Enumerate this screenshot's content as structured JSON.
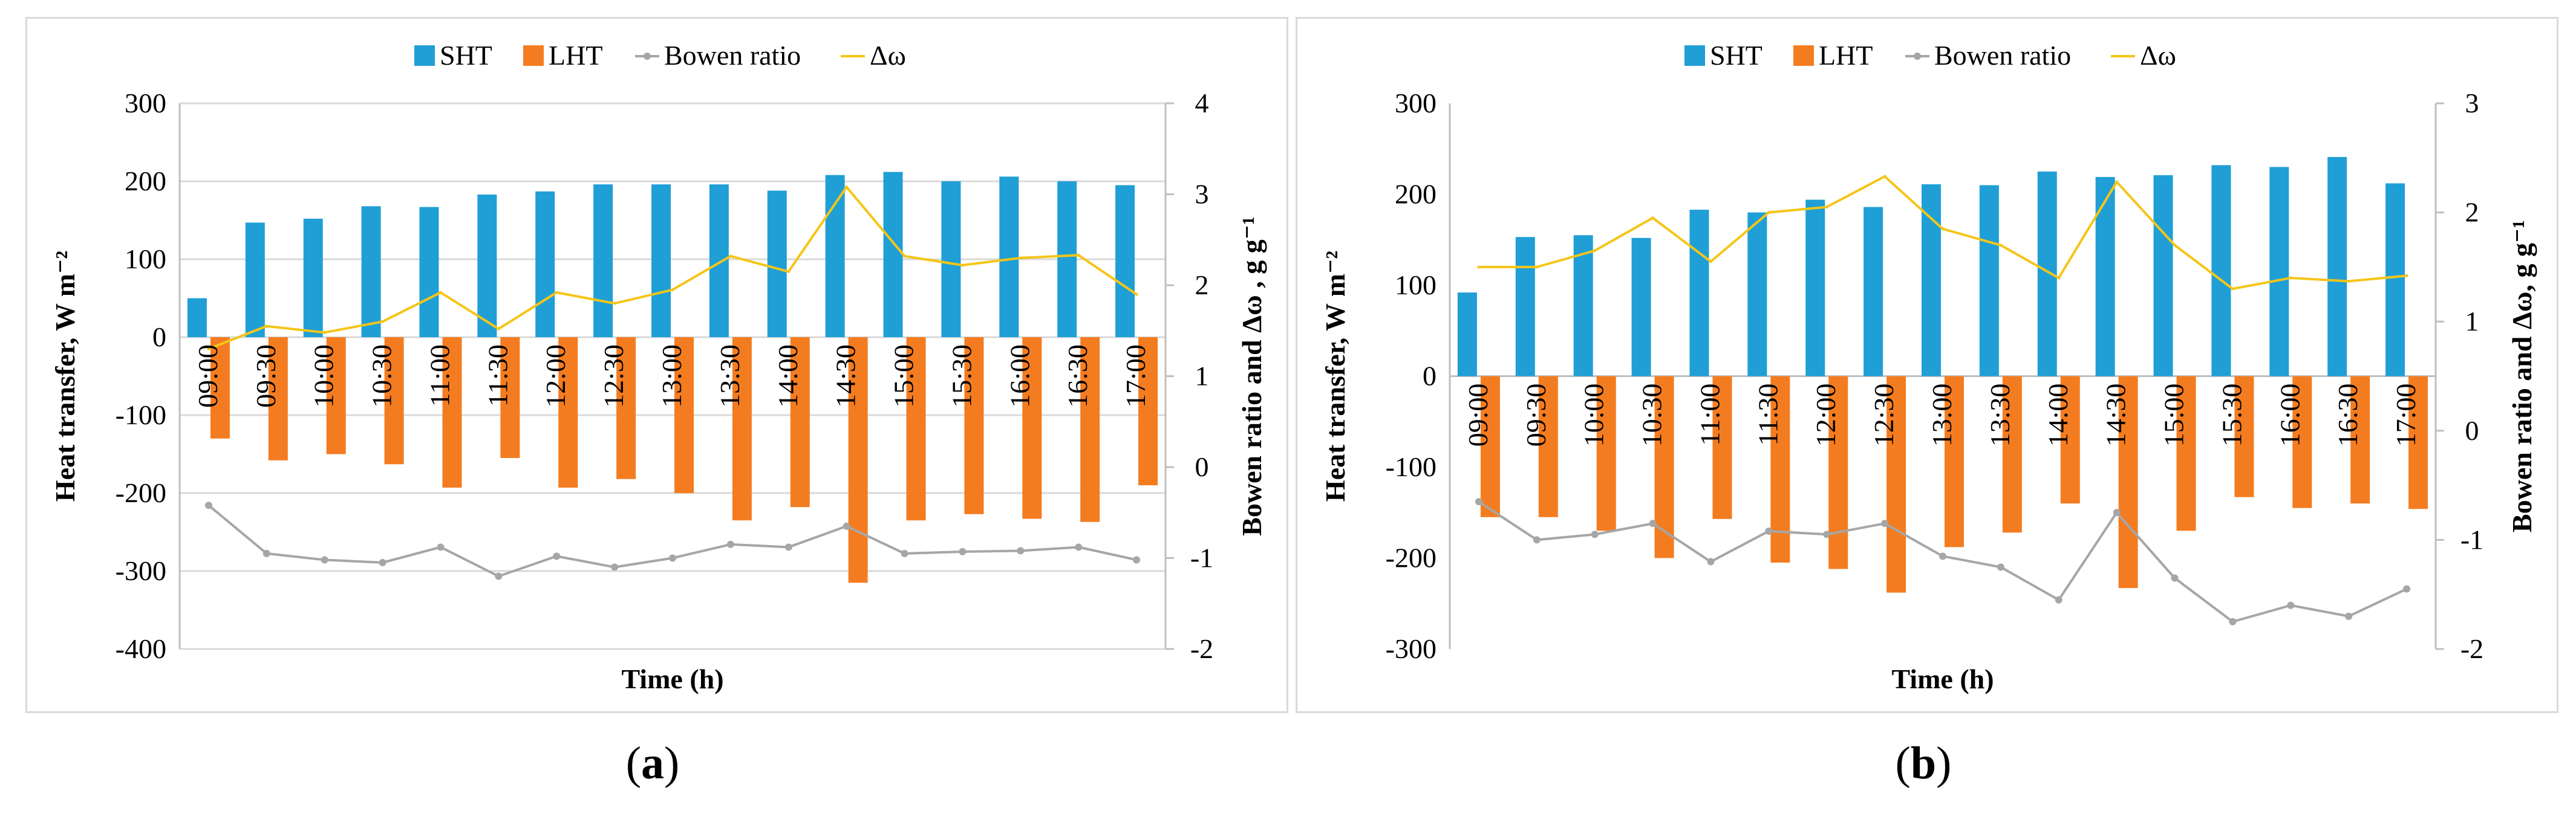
{
  "colors": {
    "sht": "#1f9fd6",
    "lht": "#f47c20",
    "bowen": "#a6a6a6",
    "domega": "#f5c518",
    "grid": "#d9d9d9",
    "axis": "#bfbfbf",
    "text": "#000000"
  },
  "captions": {
    "a": "a",
    "b": "b"
  },
  "chart_data": [
    {
      "id": "a",
      "type": "bar",
      "legend": {
        "placement": "top",
        "items": [
          "SHT",
          "LHT",
          "Bowen ratio",
          "Δω"
        ]
      },
      "xlabel": "Time (h)",
      "ylabel": "Heat transfer, W m⁻²",
      "y2label": "Bowen ratio and Δω , g g⁻¹",
      "ylim": [
        -400,
        300
      ],
      "yticks": [
        300,
        200,
        100,
        0,
        -100,
        -200,
        -300,
        -400
      ],
      "y2lim": [
        -2,
        4
      ],
      "y2ticks": [
        4,
        3,
        2,
        1,
        0,
        -1,
        -2
      ],
      "grid": true,
      "categories": [
        "09:00",
        "09:30",
        "10:00",
        "10:30",
        "11:00",
        "11:30",
        "12:00",
        "12:30",
        "13:00",
        "13:30",
        "14:00",
        "14:30",
        "15:00",
        "15:30",
        "16:00",
        "16:30",
        "17:00"
      ],
      "series": [
        {
          "name": "SHT",
          "kind": "bar",
          "axis": "left",
          "values": [
            50,
            147,
            152,
            168,
            167,
            183,
            187,
            196,
            196,
            196,
            188,
            208,
            212,
            200,
            206,
            200,
            195
          ]
        },
        {
          "name": "LHT",
          "kind": "bar",
          "axis": "left",
          "values": [
            -130,
            -158,
            -150,
            -163,
            -193,
            -155,
            -193,
            -182,
            -200,
            -235,
            -218,
            -315,
            -235,
            -227,
            -233,
            -237,
            -190
          ]
        },
        {
          "name": "Bowen ratio",
          "kind": "line",
          "axis": "right",
          "values": [
            -0.42,
            -0.95,
            -1.02,
            -1.05,
            -0.88,
            -1.2,
            -0.98,
            -1.1,
            -1.0,
            -0.85,
            -0.88,
            -0.65,
            -0.95,
            -0.93,
            -0.92,
            -0.88,
            -1.02
          ]
        },
        {
          "name": "Δω",
          "kind": "line",
          "axis": "right",
          "values": [
            1.3,
            1.55,
            1.48,
            1.6,
            1.92,
            1.52,
            1.92,
            1.8,
            1.95,
            2.32,
            2.15,
            3.08,
            2.32,
            2.22,
            2.3,
            2.33,
            1.9
          ]
        }
      ]
    },
    {
      "id": "b",
      "type": "bar",
      "legend": {
        "placement": "top",
        "items": [
          "SHT",
          "LHT",
          "Bowen ratio",
          "Δω"
        ]
      },
      "xlabel": "Time (h)",
      "ylabel": "Heat transfer, W m⁻²",
      "y2label": "Bowen ratio and Δω, g g⁻¹",
      "ylim": [
        -300,
        300
      ],
      "yticks": [
        300,
        200,
        100,
        0,
        -100,
        -200,
        -300
      ],
      "y2lim": [
        -2,
        3
      ],
      "y2ticks": [
        3,
        2,
        1,
        0,
        -1,
        -2
      ],
      "grid": false,
      "categories": [
        "09:00",
        "09:30",
        "10:00",
        "10:30",
        "11:00",
        "11:30",
        "12:00",
        "12:30",
        "13:00",
        "13:30",
        "14:00",
        "14:30",
        "15:00",
        "15:30",
        "16:00",
        "16:30",
        "17:00"
      ],
      "series": [
        {
          "name": "SHT",
          "kind": "bar",
          "axis": "left",
          "values": [
            92,
            153,
            155,
            152,
            183,
            180,
            194,
            186,
            211,
            210,
            225,
            219,
            221,
            232,
            230,
            241,
            212
          ]
        },
        {
          "name": "LHT",
          "kind": "bar",
          "axis": "left",
          "values": [
            -155,
            -155,
            -170,
            -200,
            -157,
            -205,
            -212,
            -238,
            -188,
            -172,
            -140,
            -233,
            -170,
            -133,
            -145,
            -140,
            -146
          ]
        },
        {
          "name": "Bowen ratio",
          "kind": "line",
          "axis": "right",
          "values": [
            -0.65,
            -1.0,
            -0.95,
            -0.85,
            -1.2,
            -0.92,
            -0.95,
            -0.85,
            -1.15,
            -1.25,
            -1.55,
            -0.75,
            -1.35,
            -1.75,
            -1.6,
            -1.7,
            -1.45
          ]
        },
        {
          "name": "Δω",
          "kind": "line",
          "axis": "right",
          "values": [
            1.5,
            1.5,
            1.65,
            1.95,
            1.55,
            2.0,
            2.05,
            2.33,
            1.85,
            1.7,
            1.4,
            2.28,
            1.7,
            1.3,
            1.4,
            1.37,
            1.42
          ]
        }
      ]
    }
  ]
}
